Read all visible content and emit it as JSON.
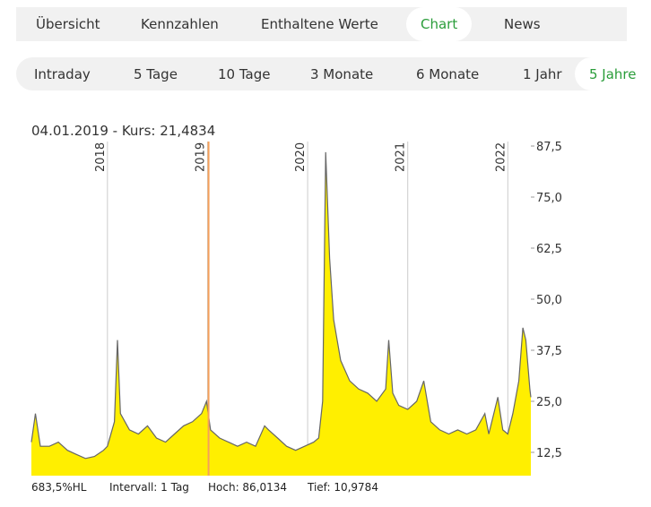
{
  "tabs": [
    "Übersicht",
    "Kennzahlen",
    "Enthaltene Werte",
    "Chart",
    "News"
  ],
  "active_tab": 3,
  "ranges": [
    "Intraday",
    "5 Tage",
    "10 Tage",
    "3 Monate",
    "6 Monate",
    "1 Jahr",
    "5 Jahre"
  ],
  "active_range": 6,
  "chart_data": {
    "type": "area",
    "selection_label": "04.01.2019  -  Kurs: 21,4834",
    "cursor_x": 2019.01,
    "x": [
      2017.24,
      2017.28,
      2017.33,
      2017.42,
      2017.51,
      2017.6,
      2017.69,
      2017.78,
      2017.87,
      2017.96,
      2018.0,
      2018.07,
      2018.1,
      2018.13,
      2018.22,
      2018.31,
      2018.4,
      2018.49,
      2018.58,
      2018.67,
      2018.76,
      2018.85,
      2018.94,
      2018.99,
      2019.03,
      2019.12,
      2019.21,
      2019.3,
      2019.39,
      2019.48,
      2019.57,
      2019.61,
      2019.7,
      2019.79,
      2019.88,
      2019.97,
      2020.06,
      2020.11,
      2020.15,
      2020.18,
      2020.22,
      2020.26,
      2020.33,
      2020.42,
      2020.51,
      2020.6,
      2020.69,
      2020.78,
      2020.81,
      2020.85,
      2020.91,
      2021.0,
      2021.09,
      2021.16,
      2021.23,
      2021.32,
      2021.41,
      2021.5,
      2021.59,
      2021.68,
      2021.77,
      2021.81,
      2021.9,
      2021.95,
      2022.0,
      2022.05,
      2022.11,
      2022.15,
      2022.18,
      2022.22,
      2022.23
    ],
    "values": [
      15,
      22,
      14,
      14,
      15,
      13,
      12,
      11,
      11.5,
      13,
      14,
      20,
      40,
      22,
      18,
      17,
      19,
      16,
      15,
      17,
      19,
      20,
      22,
      25,
      18,
      16,
      15,
      14,
      15,
      14,
      19,
      18,
      16,
      14,
      13,
      14,
      15,
      16,
      25,
      86,
      60,
      45,
      35,
      30,
      28,
      27,
      25,
      28,
      40,
      27,
      24,
      23,
      25,
      30,
      20,
      18,
      17,
      18,
      17,
      18,
      22,
      17,
      26,
      18,
      17,
      22,
      30,
      43,
      40,
      28,
      26
    ],
    "line_color": "#666666",
    "fill_color": "#ffef00",
    "cursor_color": "#f5a05a",
    "xlim": [
      2017.24,
      2022.23
    ],
    "xticks": [
      2018,
      2019,
      2020,
      2021,
      2022
    ],
    "ylim": [
      6.8,
      88.6
    ],
    "yticks": [
      {
        "value": 12.5,
        "label": "12,5"
      },
      {
        "value": 25,
        "label": "25,0"
      },
      {
        "value": 37.5,
        "label": "37,5"
      },
      {
        "value": 50,
        "label": "50,0"
      },
      {
        "value": 62.5,
        "label": "62,5"
      },
      {
        "value": 75,
        "label": "75,0"
      },
      {
        "value": 87.5,
        "label": "87,5"
      }
    ],
    "y_axis_side": "right"
  },
  "footer": [
    "683,5%HL",
    "Intervall: 1 Tag",
    "Hoch: 86,0134",
    "Tief: 10,9784"
  ]
}
